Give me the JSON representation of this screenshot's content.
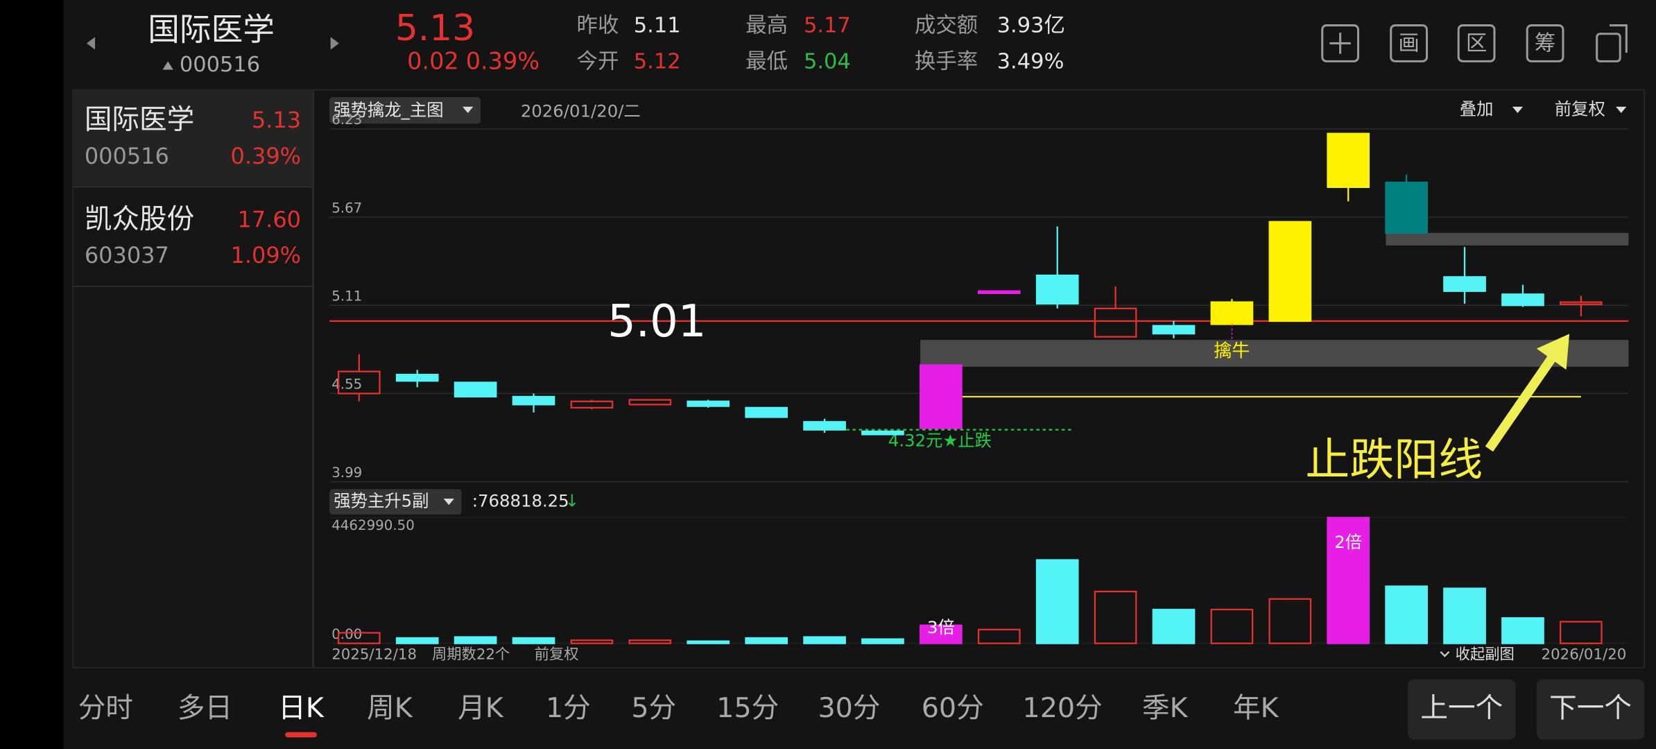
{
  "header": {
    "name": "国际医学",
    "code": "000516",
    "price": "5.13",
    "change": "0.02",
    "change_pct": "0.39%",
    "stats": [
      {
        "label": "昨收",
        "value": "5.11",
        "color": "#e6e6e6"
      },
      {
        "label": "今开",
        "value": "5.12",
        "color": "#e5322f"
      },
      {
        "label": "最高",
        "value": "5.17",
        "color": "#e5322f"
      },
      {
        "label": "最低",
        "value": "5.04",
        "color": "#2dbb4a"
      },
      {
        "label": "成交额",
        "value": "3.93亿",
        "color": "#e6e6e6"
      },
      {
        "label": "换手率",
        "value": "3.49%",
        "color": "#e6e6e6"
      }
    ],
    "icons": [
      "画",
      "区",
      "筹"
    ]
  },
  "watchlist": [
    {
      "name": "国际医学",
      "price": "5.13",
      "code": "000516",
      "pct": "0.39%"
    },
    {
      "name": "凯众股份",
      "price": "17.60",
      "code": "603037",
      "pct": "1.09%"
    }
  ],
  "main_chart": {
    "indicator": "强势擒龙_主图",
    "date": "2026/01/20/二",
    "overlay": "叠加",
    "adjust": "前复权",
    "ylim": [
      3.99,
      6.23
    ],
    "yticks": [
      6.23,
      5.67,
      5.11,
      4.55,
      3.99
    ],
    "hollow_color": "#e5322f",
    "candles": [
      {
        "open": 4.55,
        "high": 4.8,
        "low": 4.5,
        "close": 4.69,
        "color": "#e5322f"
      },
      {
        "open": 4.67,
        "high": 4.7,
        "low": 4.59,
        "close": 4.63,
        "color": "#54f3f6"
      },
      {
        "open": 4.62,
        "high": 4.62,
        "low": 4.53,
        "close": 4.53,
        "color": "#54f3f6"
      },
      {
        "open": 4.53,
        "high": 4.55,
        "low": 4.43,
        "close": 4.48,
        "color": "#54f3f6"
      },
      {
        "open": 4.46,
        "high": 4.51,
        "low": 4.45,
        "close": 4.5,
        "color": "#e5322f"
      },
      {
        "open": 4.48,
        "high": 4.51,
        "low": 4.48,
        "close": 4.51,
        "color": "#e5322f"
      },
      {
        "open": 4.5,
        "high": 4.51,
        "low": 4.46,
        "close": 4.47,
        "color": "#54f3f6"
      },
      {
        "open": 4.46,
        "high": 4.46,
        "low": 4.4,
        "close": 4.4,
        "color": "#54f3f6"
      },
      {
        "open": 4.37,
        "high": 4.39,
        "low": 4.3,
        "close": 4.32,
        "color": "#54f3f6"
      },
      {
        "open": 4.31,
        "high": 4.31,
        "low": 4.29,
        "close": 4.29,
        "color": "#54f3f6"
      },
      {
        "open": 4.33,
        "high": 4.73,
        "low": 4.33,
        "close": 4.73,
        "color": "#e61ee6"
      },
      {
        "open": 5.2,
        "high": 5.2,
        "low": 5.2,
        "close": 5.2,
        "color": "#e61ee6"
      },
      {
        "open": 5.3,
        "high": 5.61,
        "low": 5.09,
        "close": 5.12,
        "color": "#54f3f6"
      },
      {
        "open": 4.91,
        "high": 5.23,
        "low": 4.91,
        "close": 5.09,
        "color": "#e5322f"
      },
      {
        "open": 4.98,
        "high": 5.01,
        "low": 4.9,
        "close": 4.93,
        "color": "#54f3f6"
      },
      {
        "open": 4.99,
        "high": 5.15,
        "low": 4.99,
        "close": 5.13,
        "color": "#fff200"
      },
      {
        "open": 5.01,
        "high": 5.64,
        "low": 5.01,
        "close": 5.64,
        "color": "#fff200"
      },
      {
        "open": 5.86,
        "high": 6.2,
        "low": 5.77,
        "close": 6.2,
        "color": "#fff200"
      },
      {
        "open": 5.89,
        "high": 5.94,
        "low": 5.57,
        "close": 5.57,
        "color": "#008080"
      },
      {
        "open": 5.29,
        "high": 5.48,
        "low": 5.12,
        "close": 5.2,
        "color": "#54f3f6"
      },
      {
        "open": 5.18,
        "high": 5.24,
        "low": 5.1,
        "close": 5.11,
        "color": "#54f3f6"
      },
      {
        "open": 5.12,
        "high": 5.17,
        "low": 5.04,
        "close": 5.13,
        "color": "#e5322f"
      }
    ],
    "levels": [
      {
        "value": 5.01,
        "label": "5.01",
        "color": "#e5322f"
      },
      {
        "value": 4.53,
        "color": "#f0e020"
      },
      {
        "value": 4.32,
        "label": "4.32元★止跌",
        "color": "#22cc44",
        "dashed": true
      }
    ],
    "bands": [
      {
        "low": 5.49,
        "high": 5.57,
        "color": "#4a4a4a"
      },
      {
        "low": 4.72,
        "high": 4.89,
        "color": "#4a4a4a"
      }
    ],
    "bull_label": "擒牛",
    "callout": "止跌阳线"
  },
  "sub_chart": {
    "indicator": "强势主升5副",
    "value": ":768818.25",
    "value_arrow": "↓",
    "ylim": [
      0,
      4462990.5
    ],
    "yticks": [
      {
        "value": 4462990.5,
        "label": "4462990.50"
      },
      {
        "value": 0,
        "label": "0.00"
      }
    ],
    "values": [
      375000,
      190000,
      225000,
      190000,
      110000,
      110000,
      75000,
      190000,
      225000,
      150000,
      640000,
      490000,
      2960000,
      1840000,
      1200000,
      1200000,
      1575000,
      4462990.5,
      2025000,
      1950000,
      900000,
      768818.25
    ],
    "colors": [
      "#e5322f",
      "#54f3f6",
      "#54f3f6",
      "#54f3f6",
      "#e5322f",
      "#e5322f",
      "#54f3f6",
      "#54f3f6",
      "#54f3f6",
      "#54f3f6",
      "#e61ee6",
      "#e5322f",
      "#54f3f6",
      "#e5322f",
      "#54f3f6",
      "#e5322f",
      "#e5322f",
      "#e61ee6",
      "#54f3f6",
      "#54f3f6",
      "#54f3f6",
      "#e5322f"
    ],
    "bar_labels": [
      null,
      null,
      null,
      null,
      null,
      null,
      null,
      null,
      null,
      null,
      "3倍",
      null,
      null,
      null,
      null,
      null,
      null,
      "2倍",
      null,
      null,
      null,
      null
    ]
  },
  "footer": {
    "start_date": "2025/12/18",
    "period_count": "周期数22个",
    "adjust": "前复权",
    "collapse": "收起副图",
    "end_date": "2026/01/20"
  },
  "tabs": [
    "分时",
    "多日",
    "日K",
    "周K",
    "月K",
    "1分",
    "5分",
    "15分",
    "30分",
    "60分",
    "120分",
    "季K",
    "年K"
  ],
  "selected_tab": 2,
  "buttons": [
    "上一个",
    "下一个"
  ]
}
